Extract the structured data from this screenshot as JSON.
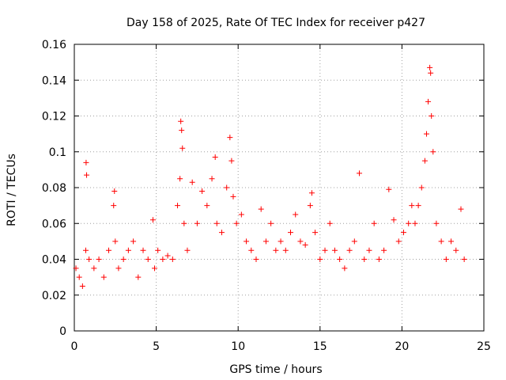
{
  "chart_data": {
    "type": "scatter",
    "title": "Day 158 of 2025, Rate Of TEC Index for receiver p427",
    "xlabel": "GPS time / hours",
    "ylabel": "ROTI / TECUs",
    "xlim": [
      0,
      25
    ],
    "ylim": [
      0,
      0.16
    ],
    "xticks": [
      0,
      5,
      10,
      15,
      20,
      25
    ],
    "xtick_labels": [
      "0",
      "5",
      "10",
      "15",
      "20",
      "25"
    ],
    "yticks": [
      0,
      0.02,
      0.04,
      0.06,
      0.08,
      0.1,
      0.12,
      0.14,
      0.16
    ],
    "ytick_labels": [
      "0",
      "0.02",
      "0.04",
      "0.06",
      "0.08",
      "0.1",
      "0.12",
      "0.14",
      "0.16"
    ],
    "grid": true,
    "marker": "+",
    "marker_color": "#ff0000",
    "series": [
      {
        "name": "ROTI",
        "color": "#ff0000",
        "x": [
          0.1,
          0.3,
          0.5,
          0.7,
          0.72,
          0.75,
          0.9,
          1.2,
          1.5,
          1.8,
          2.1,
          2.4,
          2.45,
          2.5,
          2.7,
          3.0,
          3.3,
          3.6,
          3.9,
          4.2,
          4.5,
          4.8,
          4.9,
          5.1,
          5.4,
          5.7,
          6.0,
          6.3,
          6.45,
          6.5,
          6.55,
          6.6,
          6.7,
          6.9,
          7.2,
          7.5,
          7.8,
          8.1,
          8.4,
          8.6,
          8.7,
          9.0,
          9.3,
          9.5,
          9.6,
          9.7,
          9.9,
          10.2,
          10.5,
          10.8,
          11.1,
          11.4,
          11.7,
          12.0,
          12.3,
          12.6,
          12.9,
          13.2,
          13.5,
          13.8,
          14.1,
          14.4,
          14.5,
          14.7,
          15.0,
          15.3,
          15.6,
          15.9,
          16.2,
          16.5,
          16.8,
          17.1,
          17.4,
          17.7,
          18.0,
          18.3,
          18.6,
          18.9,
          19.2,
          19.5,
          19.8,
          20.1,
          20.4,
          20.6,
          20.8,
          21.0,
          21.2,
          21.4,
          21.5,
          21.6,
          21.7,
          21.75,
          21.8,
          21.9,
          22.1,
          22.4,
          22.7,
          23.0,
          23.3,
          23.6,
          23.8
        ],
        "y": [
          0.035,
          0.03,
          0.025,
          0.045,
          0.094,
          0.087,
          0.04,
          0.035,
          0.04,
          0.03,
          0.045,
          0.07,
          0.078,
          0.05,
          0.035,
          0.04,
          0.045,
          0.05,
          0.03,
          0.045,
          0.04,
          0.062,
          0.035,
          0.045,
          0.04,
          0.042,
          0.04,
          0.07,
          0.085,
          0.117,
          0.112,
          0.102,
          0.06,
          0.045,
          0.083,
          0.06,
          0.078,
          0.07,
          0.085,
          0.097,
          0.06,
          0.055,
          0.08,
          0.108,
          0.095,
          0.075,
          0.06,
          0.065,
          0.05,
          0.045,
          0.04,
          0.068,
          0.05,
          0.06,
          0.045,
          0.05,
          0.045,
          0.055,
          0.065,
          0.05,
          0.048,
          0.07,
          0.077,
          0.055,
          0.04,
          0.045,
          0.06,
          0.045,
          0.04,
          0.035,
          0.045,
          0.05,
          0.088,
          0.04,
          0.045,
          0.06,
          0.04,
          0.045,
          0.079,
          0.062,
          0.05,
          0.055,
          0.06,
          0.07,
          0.06,
          0.07,
          0.08,
          0.095,
          0.11,
          0.128,
          0.147,
          0.144,
          0.12,
          0.1,
          0.06,
          0.05,
          0.04,
          0.05,
          0.045,
          0.068,
          0.04
        ]
      }
    ]
  }
}
